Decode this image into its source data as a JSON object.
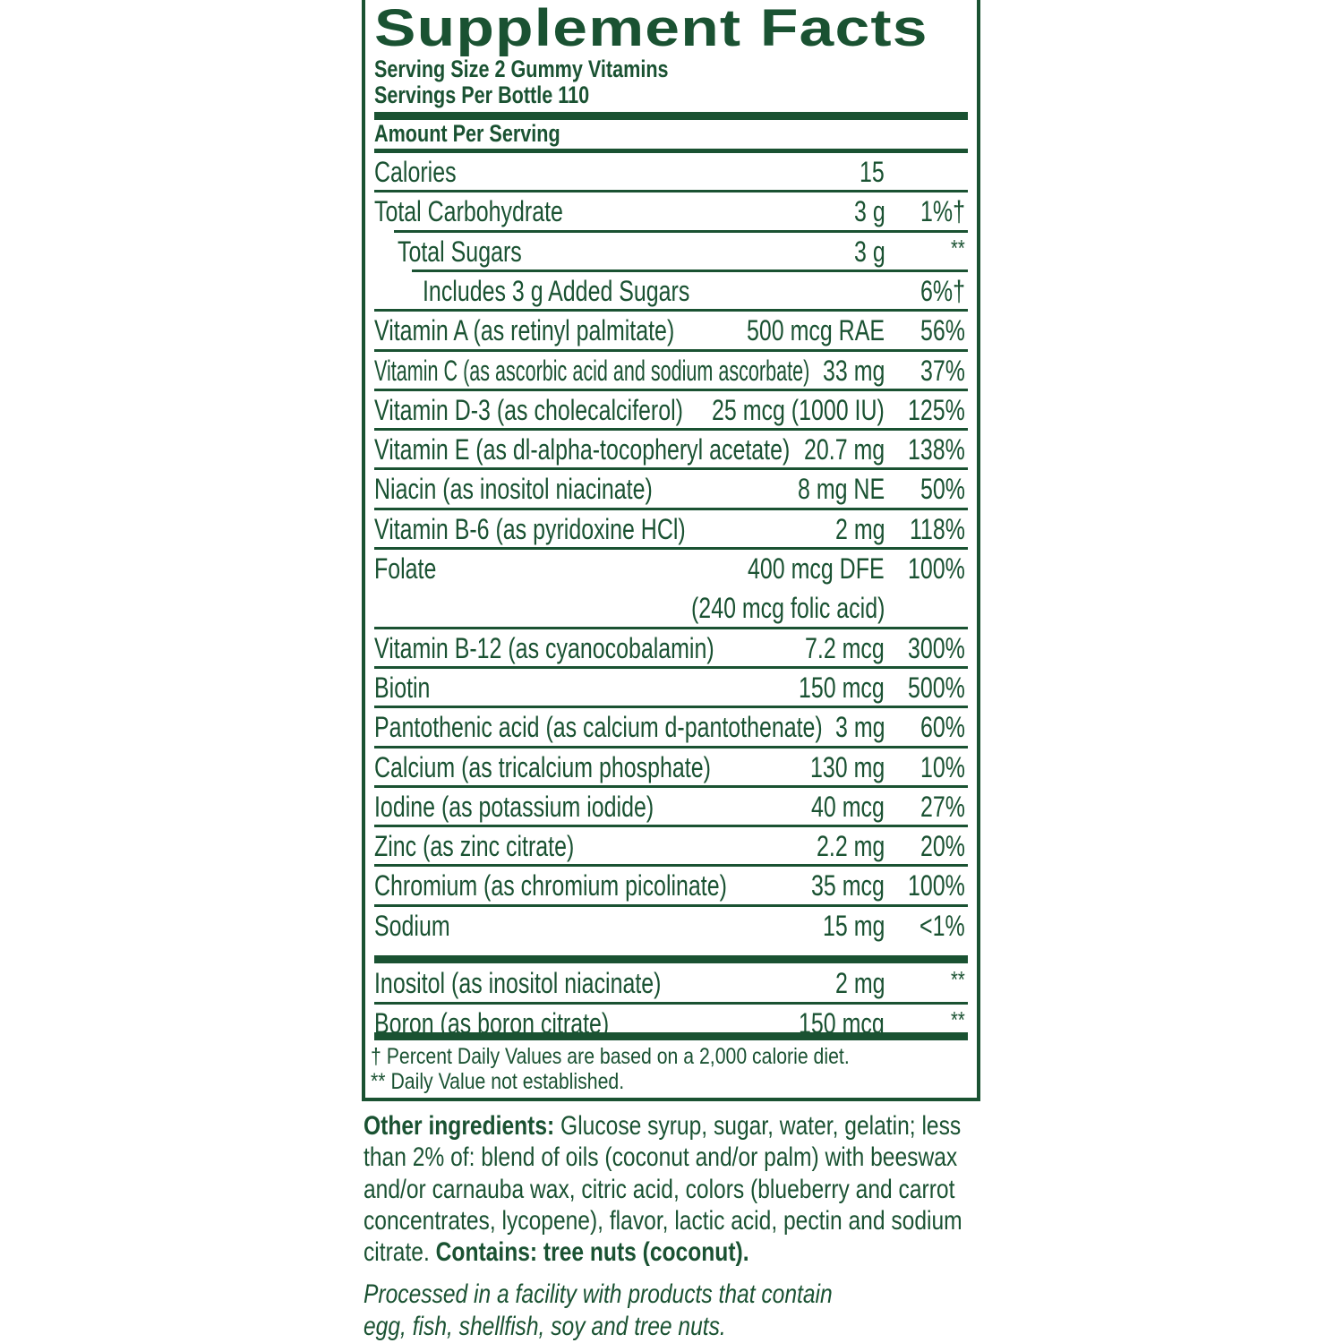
{
  "title": "Supplement Facts",
  "serving_size": "Serving Size 2 Gummy Vitamins",
  "servings_per": "Servings Per Bottle 110",
  "amount_per_serving": "Amount Per Serving",
  "rows": [
    {
      "name": "Calories",
      "indent": 0,
      "amount": "15",
      "dv": ""
    },
    {
      "name": "Total Carbohydrate",
      "indent": 0,
      "amount": "3 g",
      "dv": "1%†"
    },
    {
      "name": "Total Sugars",
      "indent": 1,
      "amount": "3 g",
      "dv": "**"
    },
    {
      "name": "Includes 3 g Added Sugars",
      "indent": 2,
      "amount": "",
      "dv": "6%†"
    },
    {
      "name": "Vitamin A (as retinyl palmitate)",
      "indent": 0,
      "amount": "500 mcg RAE",
      "dv": "56%"
    },
    {
      "name": "Vitamin C (as ascorbic acid and sodium ascorbate)",
      "indent": 0,
      "amount": "33 mg",
      "dv": "37%"
    },
    {
      "name": "Vitamin D-3 (as cholecalciferol)",
      "indent": 0,
      "amount": "25 mcg (1000 IU)",
      "dv": "125%"
    },
    {
      "name": "Vitamin E (as dl-alpha-tocopheryl acetate)",
      "indent": 0,
      "amount": "20.7 mg",
      "dv": "138%"
    },
    {
      "name": "Niacin (as inositol niacinate)",
      "indent": 0,
      "amount": "8 mg NE",
      "dv": "50%"
    },
    {
      "name": "Vitamin B-6 (as pyridoxine HCl)",
      "indent": 0,
      "amount": "2 mg",
      "dv": "118%"
    },
    {
      "name": "Folate",
      "indent": 0,
      "amount": "400 mcg DFE",
      "amount2": "(240 mcg folic acid)",
      "dv": "100%"
    },
    {
      "name": "Vitamin B-12 (as cyanocobalamin)",
      "indent": 0,
      "amount": "7.2 mcg",
      "dv": "300%"
    },
    {
      "name": "Biotin",
      "indent": 0,
      "amount": "150 mcg",
      "dv": "500%"
    },
    {
      "name": "Pantothenic acid (as calcium d-pantothenate)",
      "indent": 0,
      "amount": "3 mg",
      "dv": "60%"
    },
    {
      "name": "Calcium (as tricalcium phosphate)",
      "indent": 0,
      "amount": "130 mg",
      "dv": "10%"
    },
    {
      "name": "Iodine (as potassium iodide)",
      "indent": 0,
      "amount": "40 mcg",
      "dv": "27%"
    },
    {
      "name": "Zinc (as zinc citrate)",
      "indent": 0,
      "amount": "2.2 mg",
      "dv": "20%"
    },
    {
      "name": "Chromium (as chromium picolinate)",
      "indent": 0,
      "amount": "35 mcg",
      "dv": "100%"
    },
    {
      "name": "Sodium",
      "indent": 0,
      "amount": "15 mg",
      "dv": "<1%"
    }
  ],
  "other_rows": [
    {
      "name": "Inositol (as inositol niacinate)",
      "amount": "2 mg",
      "dv": "**"
    },
    {
      "name": "Boron (as boron citrate)",
      "amount": "150 mcg",
      "dv": "**"
    }
  ],
  "footnotes": [
    "† Percent Daily Values are based on a 2,000 calorie diet.",
    "** Daily Value not established."
  ],
  "ingredients_lines": [
    [
      {
        "text": "Other ingredients:",
        "bold": true
      },
      {
        "text": " Glucose syrup, sugar, water, gelatin; less",
        "bold": false
      }
    ],
    [
      {
        "text": "than 2% of: blend of oils (coconut and/or palm) with beeswax",
        "bold": false
      }
    ],
    [
      {
        "text": "and/or carnauba wax, citric acid, colors (blueberry and carrot",
        "bold": false
      }
    ],
    [
      {
        "text": "concentrates, lycopene), flavor, lactic acid, pectin and sodium",
        "bold": false
      }
    ],
    [
      {
        "text": "citrate. ",
        "bold": false
      },
      {
        "text": "Contains: tree nuts (coconut).",
        "bold": true
      }
    ]
  ],
  "allergen_note": [
    "Processed in a facility with products that contain",
    "egg, fish, shellfish, soy and tree nuts."
  ],
  "colors": {
    "label_green": "#1a5232"
  }
}
